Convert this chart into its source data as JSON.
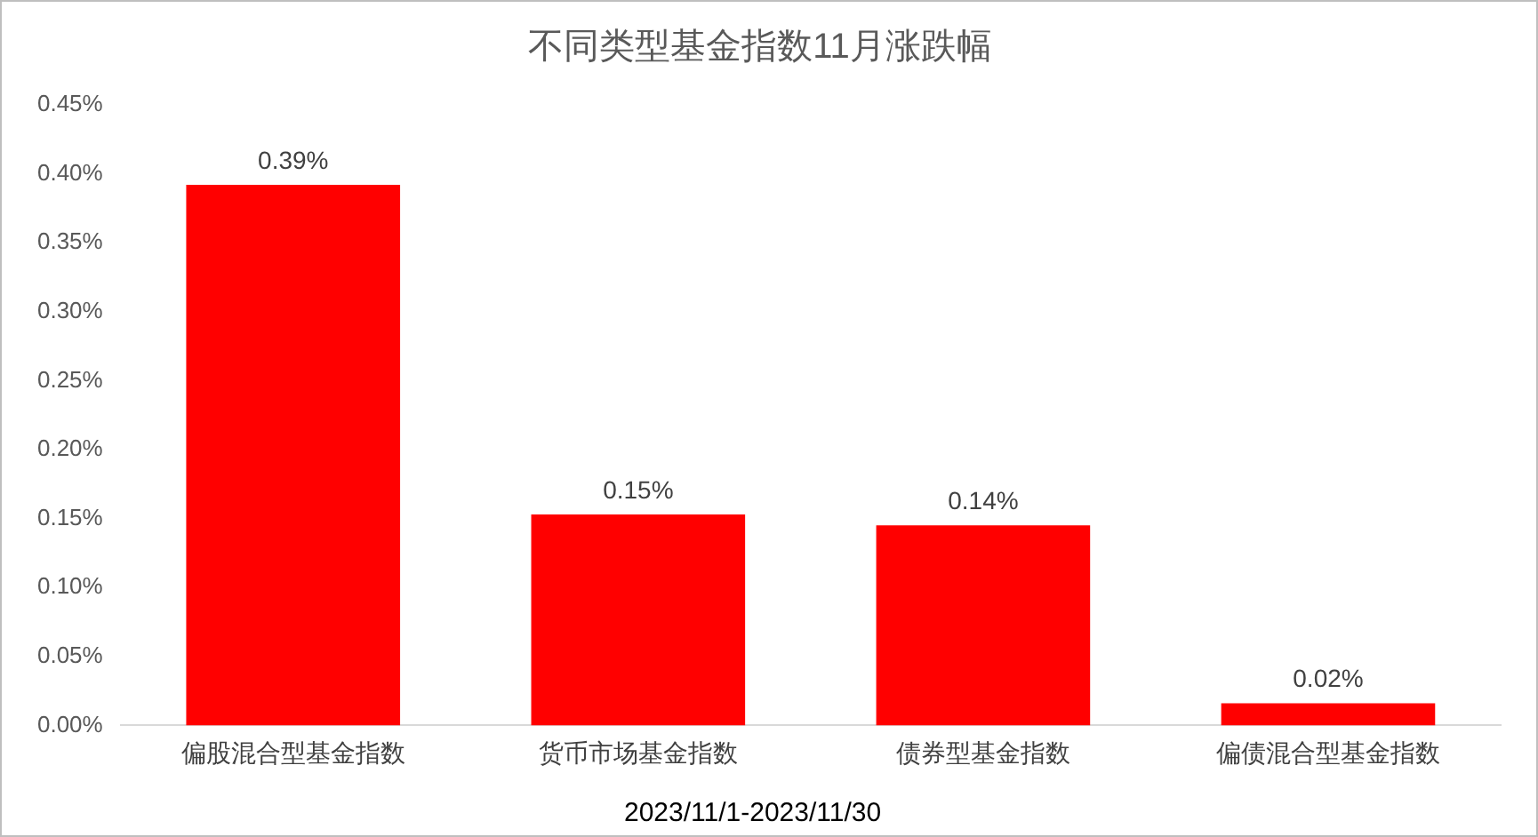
{
  "chart_data": {
    "type": "bar",
    "title": "不同类型基金指数11月涨跌幅",
    "categories": [
      "偏股混合型基金指数",
      "货币市场基金指数",
      "债券型基金指数",
      "偏债混合型基金指数"
    ],
    "values": [
      0.392,
      0.153,
      0.145,
      0.016
    ],
    "value_labels": [
      "0.39%",
      "0.15%",
      "0.14%",
      "0.02%"
    ],
    "color": "#ff0000",
    "ylim": [
      0,
      0.45
    ],
    "yticks": [
      {
        "value": 0,
        "label": "0.00%"
      },
      {
        "value": 0.05,
        "label": "0.05%"
      },
      {
        "value": 0.1,
        "label": "0.10%"
      },
      {
        "value": 0.15,
        "label": "0.15%"
      },
      {
        "value": 0.2,
        "label": "0.20%"
      },
      {
        "value": 0.25,
        "label": "0.25%"
      },
      {
        "value": 0.3,
        "label": "0.30%"
      },
      {
        "value": 0.35,
        "label": "0.35%"
      },
      {
        "value": 0.4,
        "label": "0.40%"
      },
      {
        "value": 0.45,
        "label": "0.45%"
      }
    ],
    "grid": false,
    "legend": false,
    "annotations": [
      "2023/11/1-2023/11/30"
    ]
  }
}
